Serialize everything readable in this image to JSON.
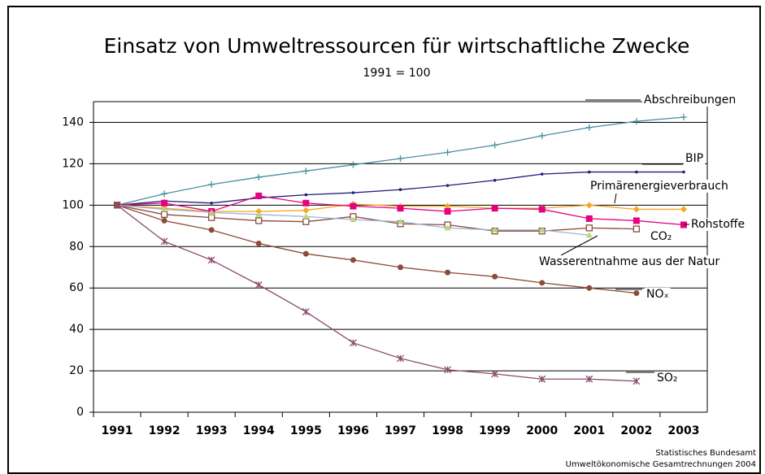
{
  "chart_data": {
    "type": "line",
    "title": "Einsatz von Umweltressourcen für wirtschaftliche Zwecke",
    "subtitle": "1991 = 100",
    "categories": [
      "1991",
      "1992",
      "1993",
      "1994",
      "1995",
      "1996",
      "1997",
      "1998",
      "1999",
      "2000",
      "2001",
      "2002",
      "2003"
    ],
    "ylim": [
      0,
      150
    ],
    "yticks": [
      0,
      20,
      40,
      60,
      80,
      100,
      120,
      140
    ],
    "grid": true,
    "series": [
      {
        "name": "Abschreibungen",
        "color": "#4a8fa0",
        "marker": "plus",
        "values": [
          100,
          105.5,
          110,
          113.5,
          116.5,
          119.5,
          122.5,
          125.5,
          129,
          133.5,
          137.5,
          140.5,
          142.5
        ]
      },
      {
        "name": "BIP",
        "color": "#1f1f7a",
        "marker": "dot",
        "values": [
          100,
          102,
          101,
          103.5,
          105,
          106,
          107.5,
          109.5,
          112,
          115,
          116,
          116,
          116
        ]
      },
      {
        "name": "Primärenergieverbrauch",
        "color": "#f5a623",
        "marker": "diamond",
        "values": [
          100,
          98.5,
          97,
          97,
          97.5,
          100.5,
          99.5,
          99.5,
          98.5,
          98.5,
          100,
          98,
          98
        ]
      },
      {
        "name": "Rohstoffe",
        "color": "#e6007e",
        "marker": "square",
        "values": [
          100,
          101,
          97,
          104.5,
          101,
          99.5,
          98.5,
          97,
          98.5,
          98,
          93.5,
          92.5,
          90.5
        ]
      },
      {
        "name": "CO₂",
        "color": "#8b4c3a",
        "marker": "opensquare",
        "values": [
          100,
          95.5,
          94,
          92.5,
          92,
          94.5,
          91,
          90.5,
          87.5,
          87.5,
          89,
          88.5,
          null
        ]
      },
      {
        "name": "Wasserentnahme aus der Natur",
        "color": "#99b3d6",
        "marker": "triangle",
        "values": [
          100,
          98,
          96.5,
          95.5,
          94.5,
          93,
          92,
          89,
          88,
          88,
          85.5,
          null,
          null
        ]
      },
      {
        "name": "NOₓ",
        "color": "#8b4c3a",
        "marker": "circle",
        "values": [
          100,
          92.5,
          88,
          81.5,
          76.5,
          73.5,
          70,
          67.5,
          65.5,
          62.5,
          60,
          57.5,
          null
        ]
      },
      {
        "name": "SO₂",
        "color": "#8b4c6e",
        "marker": "star",
        "values": [
          100,
          82.5,
          73.5,
          61.5,
          48.5,
          33.5,
          26,
          20.5,
          18.5,
          16,
          16,
          15,
          null
        ]
      }
    ],
    "source": [
      "Statistisches Bundesamt",
      "Umweltökonomische Gesamtrechnungen 2004"
    ]
  }
}
